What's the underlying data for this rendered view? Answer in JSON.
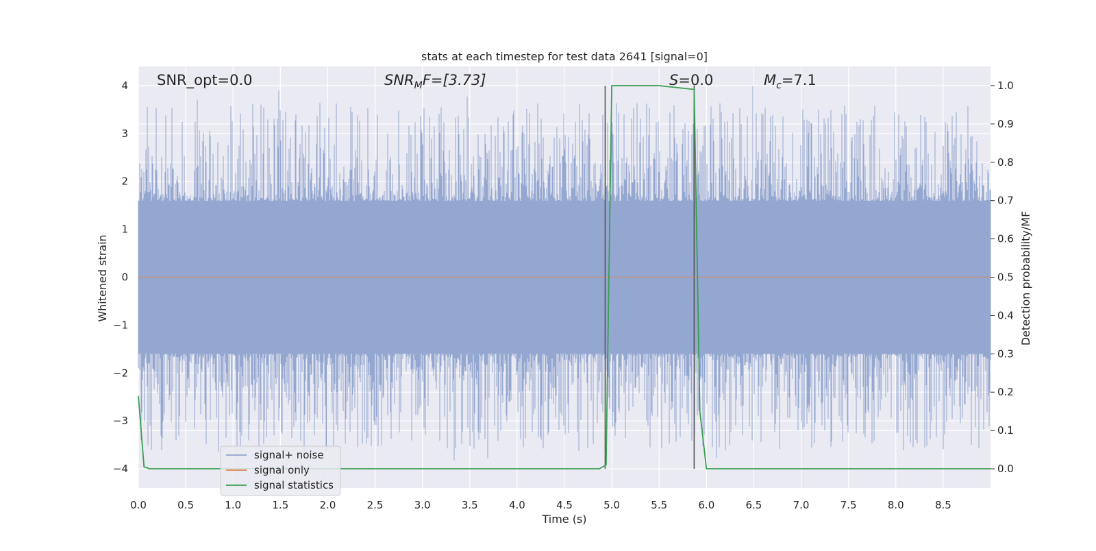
{
  "chart_data": {
    "type": "line",
    "title": "stats at each timestep for test data 2641 [signal=0]",
    "xlabel": "Time (s)",
    "ylabel": "Whitened strain",
    "y2label": "Detection probability/MF",
    "xlim": [
      0.0,
      9.0
    ],
    "ylim": [
      -4.4,
      4.4
    ],
    "y2lim": [
      -0.05,
      1.05
    ],
    "x_ticks": [
      "0.0",
      "0.5",
      "1.0",
      "1.5",
      "2.0",
      "2.5",
      "3.0",
      "3.5",
      "4.0",
      "4.5",
      "5.0",
      "5.5",
      "6.0",
      "6.5",
      "7.0",
      "7.5",
      "8.0",
      "8.5"
    ],
    "y_ticks": [
      "4",
      "3",
      "2",
      "1",
      "0",
      "−1",
      "−2",
      "−3",
      "−4"
    ],
    "y2_ticks": [
      "1.0",
      "0.9",
      "0.8",
      "0.7",
      "0.6",
      "0.5",
      "0.4",
      "0.3",
      "0.2",
      "0.1",
      "0.0"
    ],
    "grid": true,
    "legend_position": "lower-left",
    "annotations": {
      "snr_opt": "SNR_opt=0.0",
      "snr_mf_prefix": "SNR",
      "snr_mf_sub": "M",
      "snr_mf_suffix": "F=[3.73]",
      "s_prefix": "S",
      "s_suffix": "=0.0",
      "mc_prefix": "M",
      "mc_sub": "c",
      "mc_suffix": "=7.1"
    },
    "vertical_lines_x": [
      4.93,
      5.87
    ],
    "series": [
      {
        "name": "signal+ noise",
        "color": "#8fa3cd",
        "axis": "left",
        "noise_amplitude_typical": 1.6,
        "noise_amplitude_peak": 4.0
      },
      {
        "name": "signal only",
        "color": "#dd8452",
        "axis": "left",
        "x": [
          0.0,
          9.0
        ],
        "y": [
          0.0,
          0.0
        ]
      },
      {
        "name": "signal statistics",
        "color": "#3a9e51",
        "axis": "right",
        "x": [
          0.0,
          0.06,
          0.12,
          0.5,
          1.0,
          1.5,
          2.0,
          2.5,
          3.0,
          3.5,
          4.0,
          4.5,
          4.87,
          4.94,
          5.0,
          5.5,
          5.87,
          5.93,
          6.0,
          6.5,
          7.0,
          7.5,
          8.0,
          8.5,
          9.0
        ],
        "y": [
          0.19,
          0.005,
          0.0,
          0.0,
          0.0,
          0.0,
          0.0,
          0.0,
          0.0,
          0.0,
          0.0,
          0.0,
          0.0,
          0.01,
          1.0,
          1.0,
          0.99,
          0.15,
          0.0,
          0.0,
          0.0,
          0.0,
          0.0,
          0.0,
          0.0
        ]
      }
    ]
  }
}
